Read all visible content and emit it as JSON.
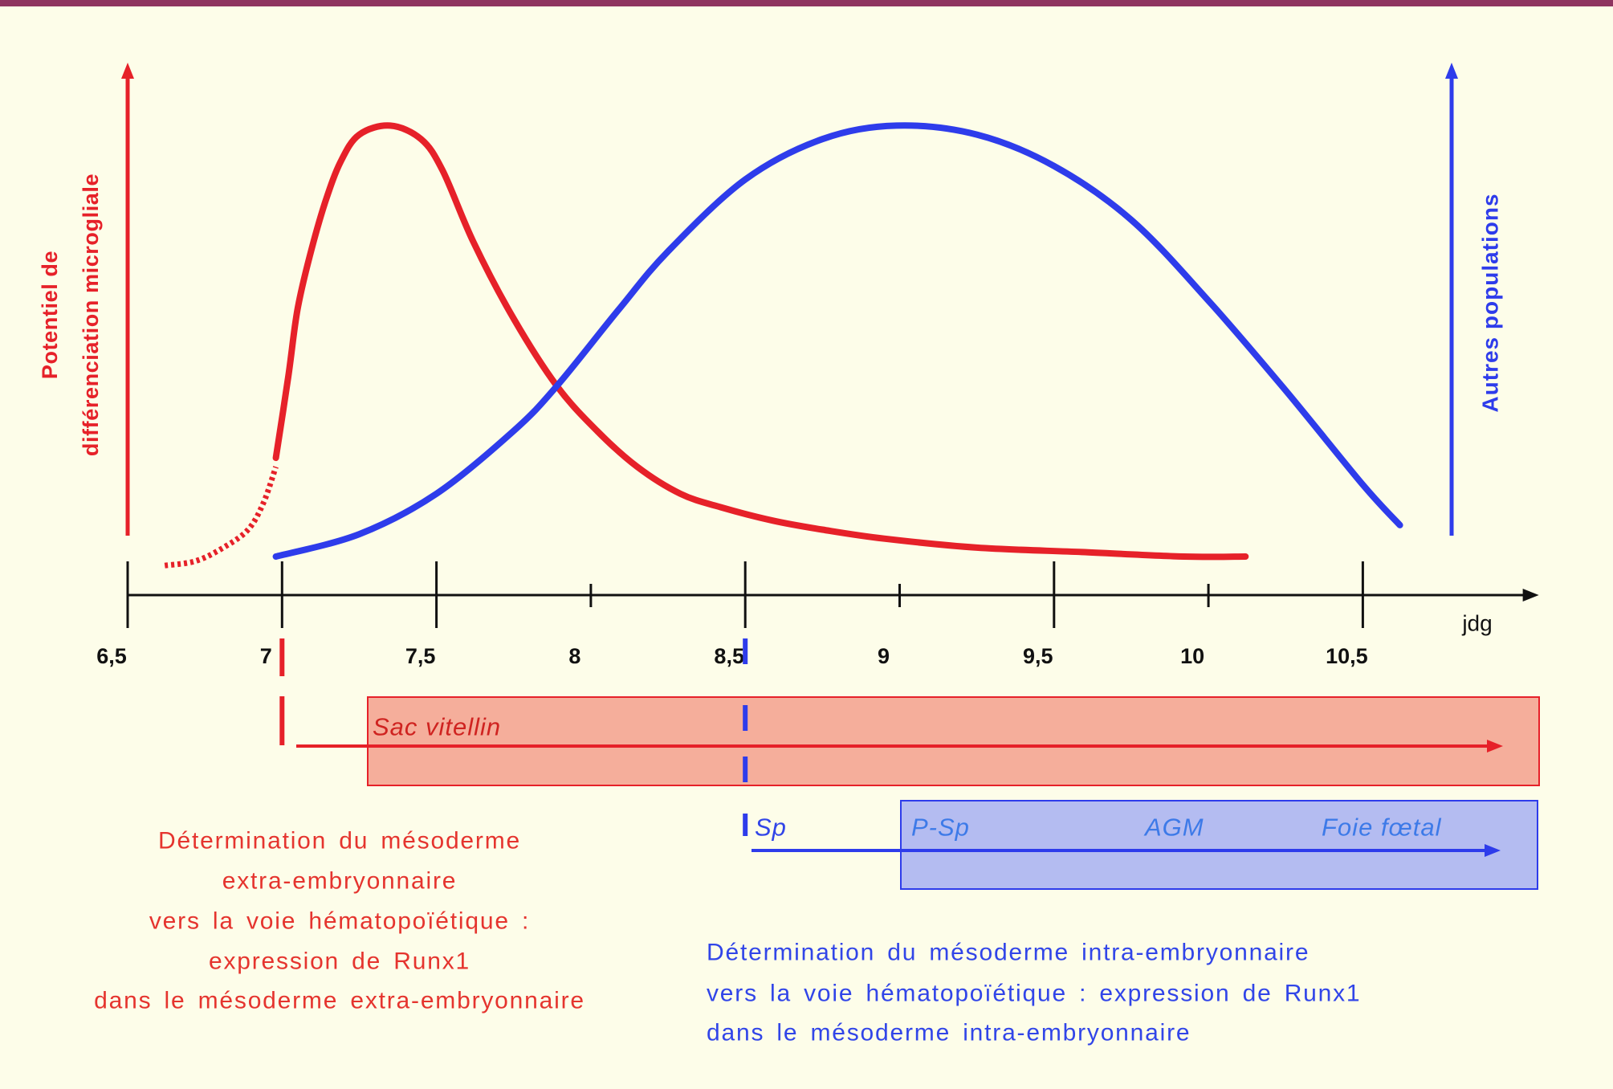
{
  "colors": {
    "background": "#FDFDE9",
    "top_border": "#8F3460",
    "axis": "#111111",
    "red": "#E62129",
    "blue": "#2E3CEB",
    "red_text": "#E5342E",
    "blue_text": "#3145E8",
    "yolk_sac_fill": "#F5AE9B",
    "yolk_label": "#CF2320",
    "intra_fill": "#B4BCF1",
    "region_label": "#3D7AE8"
  },
  "chart_data": {
    "type": "line",
    "title": "",
    "xlabel": "jdg",
    "ylabel_left": [
      "Potentiel de",
      "différenciation microgliale"
    ],
    "ylabel_right": "Autres populations",
    "xlim": [
      6.5,
      11.07
    ],
    "ylim": [
      0,
      1.13
    ],
    "x_ticks": [
      6.5,
      7,
      7.5,
      8,
      8.5,
      9,
      9.5,
      10,
      10.5
    ],
    "x_tick_labels": [
      "6,5",
      "7",
      "7,5",
      "8",
      "8,5",
      "9",
      "9,5",
      "10",
      "10,5"
    ],
    "major_ticks": [
      6.5,
      7,
      7.5,
      8.5,
      9.5,
      10.5
    ],
    "grid": false,
    "legend": "none",
    "series": [
      {
        "color": "#E62129",
        "segments": [
          {
            "style": "dotted",
            "points": [
              [
                6.62,
                0.02
              ],
              [
                6.72,
                0.03
              ],
              [
                6.81,
                0.06
              ],
              [
                6.89,
                0.1
              ],
              [
                6.94,
                0.16
              ],
              [
                6.98,
                0.24
              ]
            ]
          },
          {
            "style": "solid",
            "points": [
              [
                6.98,
                0.26
              ],
              [
                7.02,
                0.44
              ],
              [
                7.05,
                0.59
              ],
              [
                7.09,
                0.71
              ],
              [
                7.14,
                0.83
              ],
              [
                7.19,
                0.92
              ],
              [
                7.25,
                0.98
              ],
              [
                7.35,
                1.0
              ],
              [
                7.45,
                0.97
              ],
              [
                7.52,
                0.9
              ],
              [
                7.62,
                0.74
              ],
              [
                7.75,
                0.57
              ],
              [
                7.89,
                0.42
              ],
              [
                8.02,
                0.32
              ],
              [
                8.15,
                0.24
              ],
              [
                8.29,
                0.18
              ],
              [
                8.42,
                0.15
              ],
              [
                8.59,
                0.12
              ],
              [
                8.75,
                0.1
              ],
              [
                8.95,
                0.08
              ],
              [
                9.25,
                0.06
              ],
              [
                9.59,
                0.05
              ],
              [
                9.92,
                0.04
              ],
              [
                10.12,
                0.04
              ]
            ]
          }
        ]
      },
      {
        "color": "#2E3CEB",
        "segments": [
          {
            "style": "solid",
            "points": [
              [
                6.98,
                0.04
              ],
              [
                7.25,
                0.09
              ],
              [
                7.5,
                0.18
              ],
              [
                7.75,
                0.32
              ],
              [
                7.89,
                0.42
              ],
              [
                8.09,
                0.59
              ],
              [
                8.25,
                0.72
              ],
              [
                8.5,
                0.88
              ],
              [
                8.75,
                0.97
              ],
              [
                8.99,
                1.0
              ],
              [
                9.25,
                0.98
              ],
              [
                9.5,
                0.91
              ],
              [
                9.75,
                0.79
              ],
              [
                10.0,
                0.61
              ],
              [
                10.25,
                0.41
              ],
              [
                10.5,
                0.2
              ],
              [
                10.62,
                0.11
              ]
            ]
          }
        ]
      }
    ]
  },
  "diagram": {
    "yolk_sac": {
      "label": "Sac vitellin",
      "start": 7
    },
    "intra_embryo": {
      "start_label": "Sp",
      "start": 8.5,
      "regions": [
        "P-Sp",
        "AGM",
        "Foie fœtal"
      ]
    },
    "extra_text": [
      "Détermination du mésoderme",
      "extra-embryonnaire",
      "vers la voie hématopoïétique :",
      "expression de Runx1",
      "dans le mésoderme extra-embryonnaire"
    ],
    "intra_text": [
      "Détermination du mésoderme intra-embryonnaire",
      "vers la voie hématopoïétique : expression de Runx1",
      "dans le mésoderme intra-embryonnaire"
    ]
  }
}
